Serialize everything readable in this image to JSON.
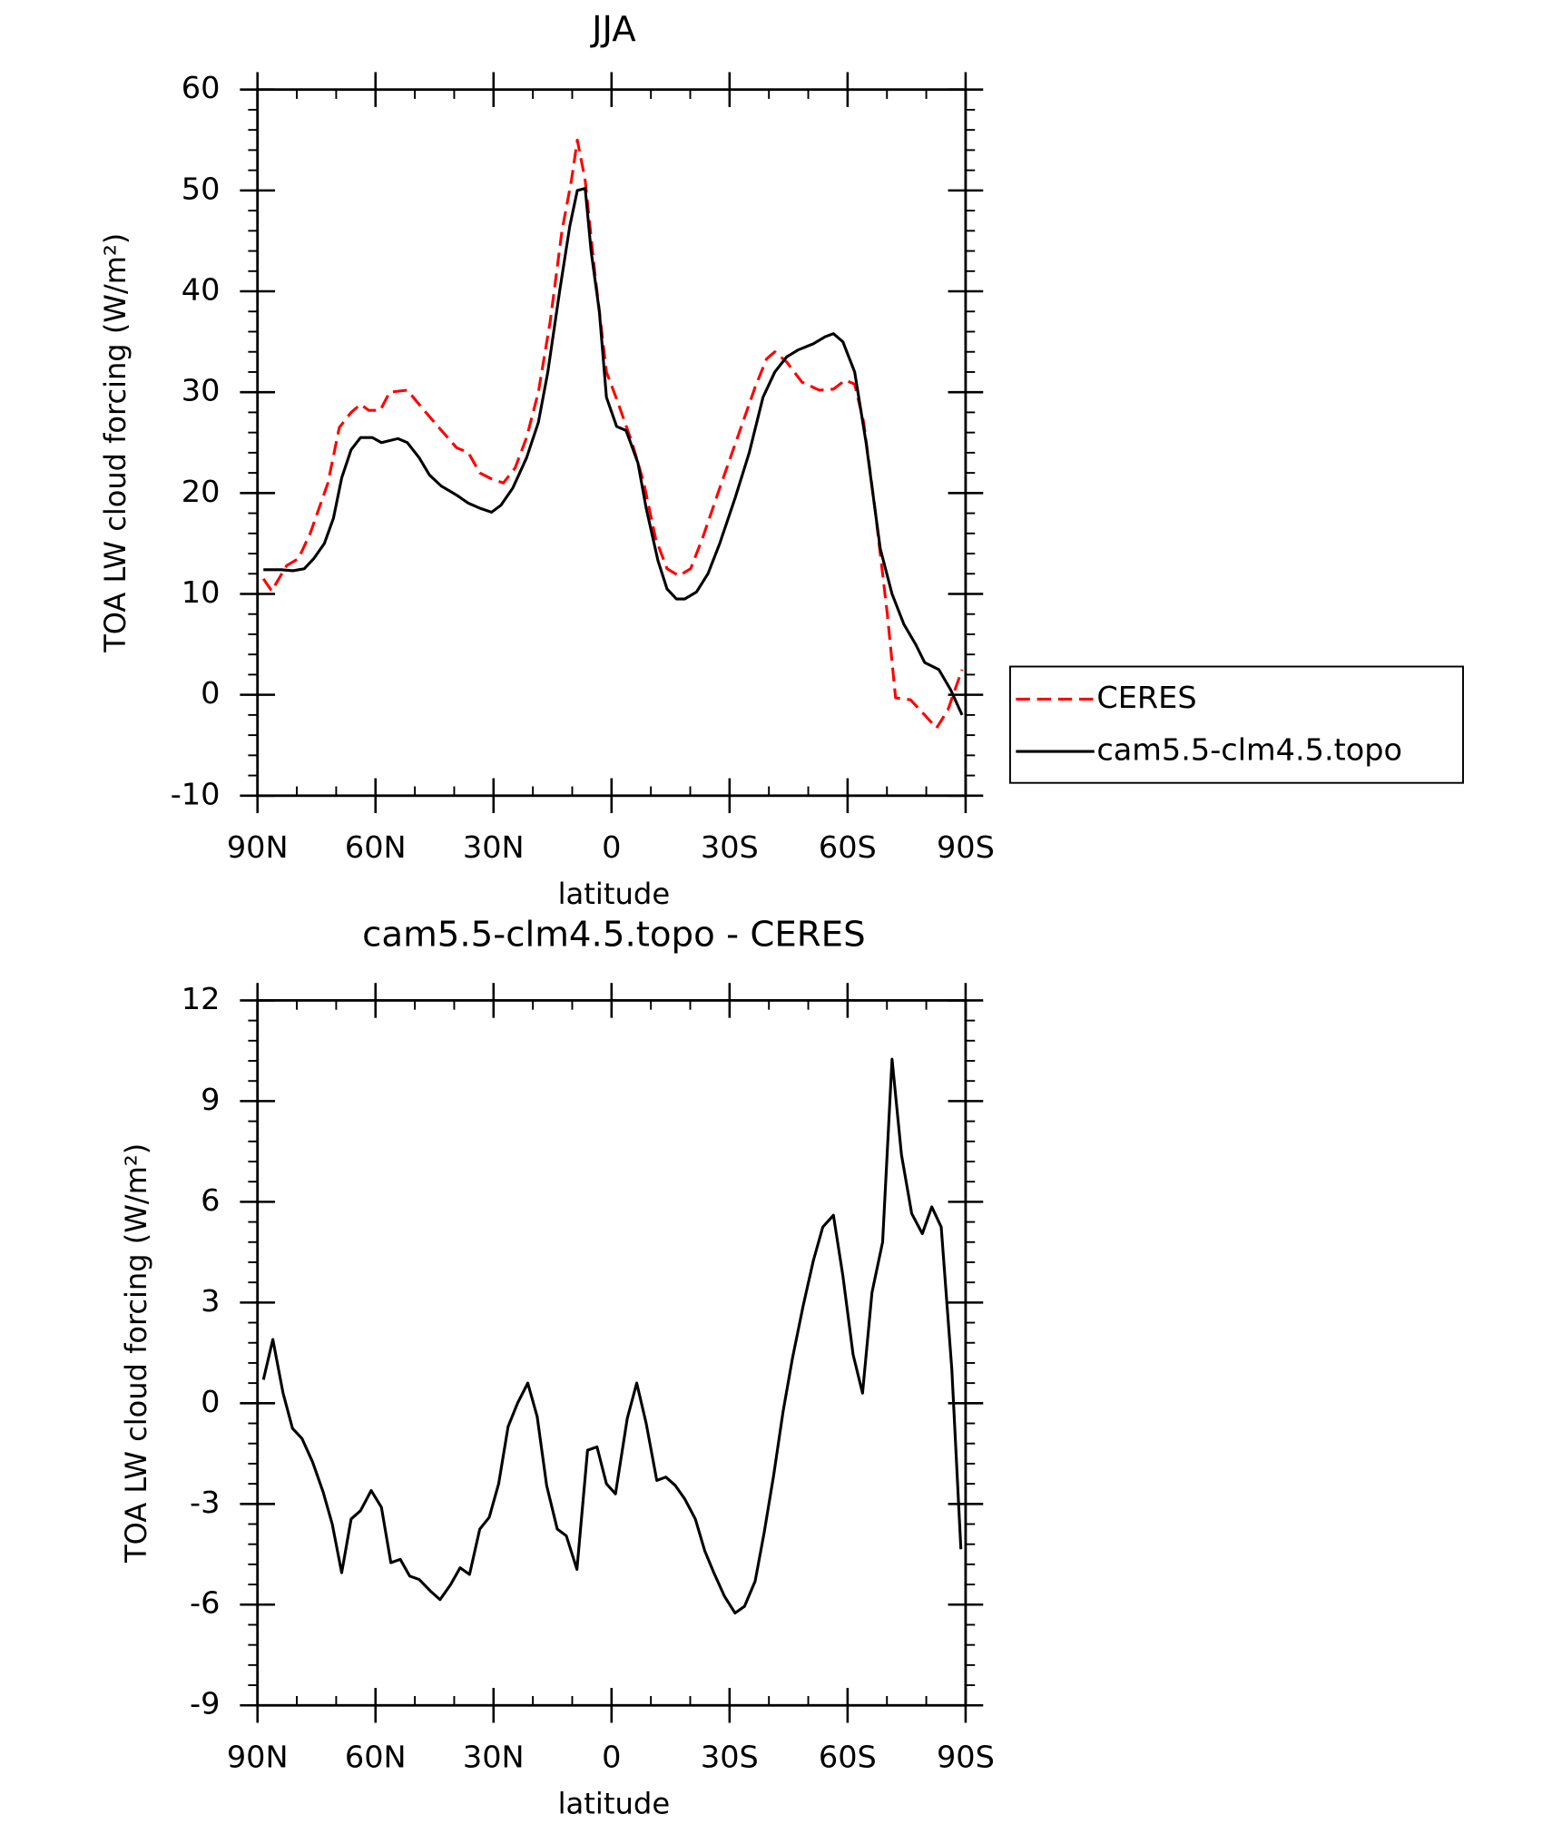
{
  "chart_data": [
    {
      "type": "line",
      "title": "JJA",
      "x_label": "latitude",
      "y_label": "TOA LW cloud forcing (W/m²)",
      "xlim": [
        90,
        -90
      ],
      "xticks": [
        {
          "value": 90,
          "label": "90N"
        },
        {
          "value": 60,
          "label": "60N"
        },
        {
          "value": 30,
          "label": "30N"
        },
        0,
        {
          "value": -30,
          "label": "30S"
        },
        {
          "value": -60,
          "label": "60S"
        },
        {
          "value": -90,
          "label": "90S"
        }
      ],
      "ylim": [
        -10,
        60
      ],
      "yticks": [
        -10,
        0,
        10,
        20,
        30,
        40,
        50,
        60
      ],
      "legend": true,
      "legend_position": "right",
      "series": [
        {
          "name": "CERES",
          "color": "#ff0000",
          "dash": true,
          "x": [
            88.5,
            86.4,
            82.6,
            79.6,
            76.6,
            72.1,
            69.2,
            66.2,
            63.8,
            61.7,
            58.8,
            56.4,
            51.9,
            48.3,
            43.9,
            39.4,
            36.4,
            33.5,
            30.5,
            27.5,
            24.5,
            21.6,
            18.6,
            15.6,
            12.6,
            10.2,
            8.7,
            6.7,
            4.3,
            1.3,
            -1.6,
            -5.2,
            -8.2,
            -11.2,
            -14.1,
            -17.1,
            -20.1,
            -23.1,
            -27.5,
            -32.0,
            -36.5,
            -39.4,
            -41.5,
            -44.5,
            -48.4,
            -52.8,
            -56.4,
            -59.4,
            -61.8,
            -64.1,
            -67.1,
            -70.1,
            -72.2,
            -76.0,
            -79.6,
            -82.6,
            -85.5,
            -89.1
          ],
          "values": [
            11.5,
            10.3,
            12.8,
            13.5,
            16,
            21,
            26.5,
            28,
            28.8,
            28.2,
            28.2,
            30,
            30.2,
            28.5,
            26.5,
            24.5,
            24,
            22,
            21.4,
            21,
            22.5,
            25.5,
            30,
            37,
            46,
            51,
            55,
            51,
            42,
            32,
            29,
            25,
            21,
            15.5,
            12.5,
            11.8,
            12.5,
            15.5,
            20.5,
            25.5,
            30.5,
            33.3,
            34,
            33,
            31,
            30.2,
            30.3,
            31.2,
            30.8,
            27,
            18,
            8,
            -0.3,
            -0.5,
            -2,
            -3.3,
            -1.5,
            2.5
          ]
        },
        {
          "name": "cam5.5-clm4.5.topo",
          "color": "#000000",
          "dash": false,
          "x": [
            88.5,
            84.0,
            81.0,
            78.1,
            75.7,
            73.0,
            70.7,
            68.6,
            66.2,
            63.8,
            60.8,
            58.5,
            54.3,
            51.9,
            48.9,
            46.3,
            43.3,
            39.4,
            36.4,
            33.5,
            30.5,
            28.1,
            25.1,
            21.6,
            18.6,
            16.2,
            13.2,
            10.6,
            8.7,
            6.7,
            5.2,
            3.1,
            1.3,
            -1.3,
            -3.7,
            -6.7,
            -8.8,
            -11.8,
            -14.1,
            -16.5,
            -18.6,
            -21.6,
            -24.5,
            -27.5,
            -31.4,
            -35.0,
            -38.5,
            -41.5,
            -44.5,
            -47.5,
            -51.3,
            -54.3,
            -56.4,
            -58.8,
            -61.8,
            -64.7,
            -68.3,
            -71.3,
            -74.3,
            -77.3,
            -79.6,
            -83.2,
            -86.2,
            -89.1
          ],
          "values": [
            12.4,
            12.4,
            12.3,
            12.5,
            13.5,
            15,
            17.5,
            21.5,
            24.3,
            25.5,
            25.5,
            25,
            25.4,
            25,
            23.5,
            21.8,
            20.7,
            19.8,
            19,
            18.5,
            18.1,
            18.8,
            20.5,
            23.5,
            27,
            32,
            40,
            46.5,
            50,
            50.2,
            44,
            38,
            29.5,
            26.6,
            26.2,
            23,
            18.5,
            13.3,
            10.5,
            9.5,
            9.5,
            10.2,
            12,
            15,
            19.5,
            24,
            29.5,
            32,
            33.5,
            34.2,
            34.8,
            35.5,
            35.8,
            35,
            32,
            25,
            14.5,
            10,
            7,
            5,
            3.2,
            2.5,
            0.5,
            -2
          ]
        }
      ]
    },
    {
      "type": "line",
      "title": "cam5.5-clm4.5.topo - CERES",
      "x_label": "latitude",
      "y_label": "TOA LW cloud forcing (W/m²)",
      "xlim": [
        90,
        -90
      ],
      "xticks": [
        {
          "value": 90,
          "label": "90N"
        },
        {
          "value": 60,
          "label": "60N"
        },
        {
          "value": 30,
          "label": "30N"
        },
        0,
        {
          "value": -30,
          "label": "30S"
        },
        {
          "value": -60,
          "label": "60S"
        },
        {
          "value": -90,
          "label": "90S"
        }
      ],
      "ylim": [
        -9,
        12
      ],
      "yticks": [
        -9,
        -6,
        -3,
        0,
        3,
        6,
        9,
        12
      ],
      "legend": false,
      "series": [
        {
          "color": "#000000",
          "dash": false,
          "x": [
            88.5,
            86.1,
            83.5,
            81.1,
            78.7,
            76.0,
            73.3,
            71.0,
            68.6,
            66.2,
            63.8,
            61.1,
            58.5,
            56.1,
            53.7,
            51.3,
            48.9,
            46.0,
            43.6,
            40.9,
            38.5,
            36.1,
            33.5,
            31.1,
            28.7,
            26.3,
            23.9,
            21.3,
            18.9,
            16.5,
            13.8,
            11.5,
            8.8,
            6.1,
            3.7,
            1.3,
            -1.0,
            -4.0,
            -6.4,
            -8.8,
            -11.5,
            -13.8,
            -16.2,
            -18.6,
            -21.3,
            -23.7,
            -26.0,
            -28.7,
            -31.4,
            -33.8,
            -36.5,
            -38.8,
            -41.2,
            -43.6,
            -46.0,
            -48.7,
            -51.3,
            -53.7,
            -56.4,
            -58.8,
            -61.4,
            -63.8,
            -66.2,
            -68.9,
            -71.3,
            -73.7,
            -76.3,
            -79.0,
            -81.4,
            -83.8,
            -86.5,
            -88.8
          ],
          "values": [
            0.7,
            1.9,
            0.3,
            -0.75,
            -1.05,
            -1.75,
            -2.65,
            -3.6,
            -5.05,
            -3.45,
            -3.2,
            -2.6,
            -3.1,
            -4.75,
            -4.65,
            -5.15,
            -5.25,
            -5.6,
            -5.85,
            -5.4,
            -4.9,
            -5.1,
            -3.75,
            -3.4,
            -2.4,
            -0.7,
            0,
            0.6,
            -0.4,
            -2.45,
            -3.75,
            -3.95,
            -4.95,
            -1.4,
            -1.3,
            -2.4,
            -2.7,
            -0.45,
            0.6,
            -0.6,
            -2.3,
            -2.2,
            -2.45,
            -2.85,
            -3.45,
            -4.4,
            -5.05,
            -5.75,
            -6.25,
            -6.05,
            -5.3,
            -3.85,
            -2.15,
            -0.25,
            1.35,
            2.9,
            4.25,
            5.25,
            5.6,
            3.8,
            1.45,
            0.3,
            3.3,
            4.8,
            10.25,
            7.4,
            5.65,
            5.05,
            5.85,
            5.25,
            1.0,
            -4.35
          ]
        }
      ]
    }
  ]
}
